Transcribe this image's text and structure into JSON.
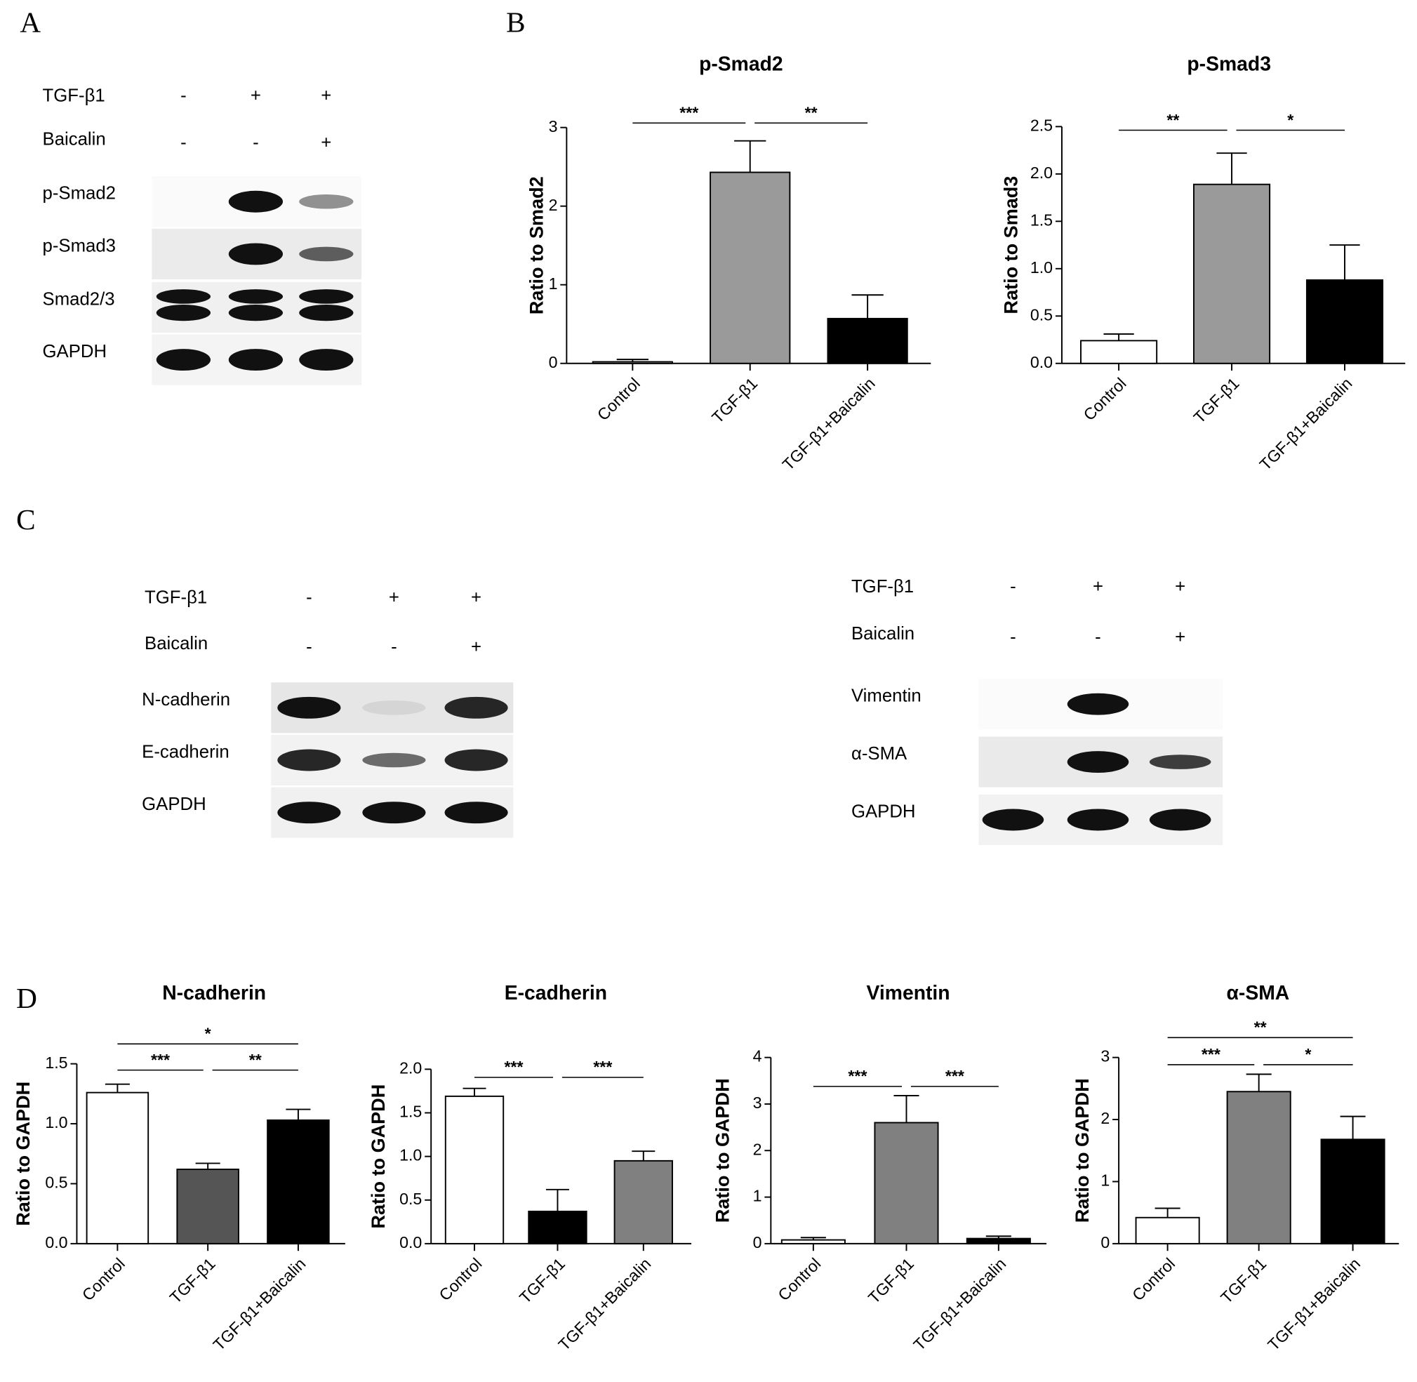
{
  "panel_labels": [
    "A",
    "B",
    "C",
    "D"
  ],
  "blots": [
    {
      "treatments": [
        {
          "name": "TGF-β1",
          "signs": [
            "-",
            "+",
            "+"
          ]
        },
        {
          "name": "Baicalin",
          "signs": [
            "-",
            "-",
            "+"
          ]
        }
      ],
      "proteins": [
        "p-Smad2",
        "p-Smad3",
        "Smad2/3",
        "GAPDH"
      ]
    },
    {
      "treatments": [
        {
          "name": "TGF-β1",
          "signs": [
            "-",
            "+",
            "+"
          ]
        },
        {
          "name": "Baicalin",
          "signs": [
            "-",
            "-",
            "+"
          ]
        }
      ],
      "proteins": [
        "N-cadherin",
        "E-cadherin",
        "GAPDH"
      ]
    },
    {
      "treatments": [
        {
          "name": "TGF-β1",
          "signs": [
            "-",
            "+",
            "+"
          ]
        },
        {
          "name": "Baicalin",
          "signs": [
            "-",
            "-",
            "+"
          ]
        }
      ],
      "proteins": [
        "Vimentin",
        "α-SMA",
        "GAPDH"
      ]
    }
  ],
  "chart_data": [
    {
      "type": "bar",
      "title": "p-Smad2",
      "y_label": "Ratio to Smad2",
      "categories": [
        "Control",
        "TGF-β1",
        "TGF-β1+Baicalin"
      ],
      "values": [
        0.02,
        2.43,
        0.57
      ],
      "errors": [
        0.03,
        0.4,
        0.3
      ],
      "colors": [
        "#ffffff",
        "#9a9a9a",
        "#000000"
      ],
      "ylim": [
        0,
        3
      ],
      "yticks": [
        0,
        1,
        2,
        3
      ],
      "annotations": [
        {
          "text": "***",
          "groups": [
            "Control",
            "TGF-β1"
          ]
        },
        {
          "text": "**",
          "groups": [
            "TGF-β1",
            "TGF-β1+Baicalin"
          ]
        }
      ]
    },
    {
      "type": "bar",
      "title": "p-Smad3",
      "y_label": "Ratio to Smad3",
      "categories": [
        "Control",
        "TGF-β1",
        "TGF-β1+Baicalin"
      ],
      "values": [
        0.24,
        1.89,
        0.88
      ],
      "errors": [
        0.07,
        0.33,
        0.37
      ],
      "colors": [
        "#ffffff",
        "#9a9a9a",
        "#000000"
      ],
      "ylim": [
        0,
        2.5
      ],
      "yticks": [
        {
          "value": 0,
          "label": "0.0"
        },
        0.5,
        {
          "value": 1,
          "label": "1.0"
        },
        1.5,
        {
          "value": 2,
          "label": "2.0"
        },
        2.5
      ],
      "annotations": [
        {
          "text": "**",
          "groups": [
            "Control",
            "TGF-β1"
          ]
        },
        {
          "text": "*",
          "groups": [
            "TGF-β1",
            "TGF-β1+Baicalin"
          ]
        }
      ]
    },
    {
      "type": "bar",
      "title": "N-cadherin",
      "y_label": "Ratio to GAPDH",
      "categories": [
        "Control",
        "TGF-β1",
        "TGF-β1+Baicalin"
      ],
      "values": [
        1.26,
        0.62,
        1.03
      ],
      "errors": [
        0.07,
        0.05,
        0.09
      ],
      "colors": [
        "#ffffff",
        "#555555",
        "#000000"
      ],
      "ylim": [
        0,
        1.5
      ],
      "yticks": [
        {
          "value": 0,
          "label": "0.0"
        },
        0.5,
        {
          "value": 1,
          "label": "1.0"
        },
        1.5
      ],
      "annotations": [
        {
          "text": "***",
          "groups": [
            "Control",
            "TGF-β1"
          ]
        },
        {
          "text": "**",
          "groups": [
            "TGF-β1",
            "TGF-β1+Baicalin"
          ]
        },
        {
          "text": "*",
          "groups": [
            "Control",
            "TGF-β1+Baicalin"
          ]
        }
      ]
    },
    {
      "type": "bar",
      "title": "E-cadherin",
      "y_label": "Ratio to GAPDH",
      "categories": [
        "Control",
        "TGF-β1",
        "TGF-β1+Baicalin"
      ],
      "values": [
        1.69,
        0.37,
        0.95
      ],
      "errors": [
        0.09,
        0.25,
        0.11
      ],
      "colors": [
        "#ffffff",
        "#000000",
        "#808080"
      ],
      "ylim": [
        0,
        2
      ],
      "yticks": [
        {
          "value": 0,
          "label": "0.0"
        },
        0.5,
        {
          "value": 1,
          "label": "1.0"
        },
        1.5,
        {
          "value": 2,
          "label": "2.0"
        }
      ],
      "annotations": [
        {
          "text": "***",
          "groups": [
            "Control",
            "TGF-β1"
          ]
        },
        {
          "text": "***",
          "groups": [
            "TGF-β1",
            "TGF-β1+Baicalin"
          ]
        }
      ]
    },
    {
      "type": "bar",
      "title": "Vimentin",
      "y_label": "Ratio to GAPDH",
      "categories": [
        "Control",
        "TGF-β1",
        "TGF-β1+Baicalin"
      ],
      "values": [
        0.08,
        2.6,
        0.11
      ],
      "errors": [
        0.05,
        0.58,
        0.05
      ],
      "colors": [
        "#ffffff",
        "#808080",
        "#000000"
      ],
      "ylim": [
        0,
        4
      ],
      "yticks": [
        0,
        1,
        2,
        3,
        4
      ],
      "annotations": [
        {
          "text": "***",
          "groups": [
            "Control",
            "TGF-β1"
          ]
        },
        {
          "text": "***",
          "groups": [
            "TGF-β1",
            "TGF-β1+Baicalin"
          ]
        }
      ]
    },
    {
      "type": "bar",
      "title": "α-SMA",
      "y_label": "Ratio to GAPDH",
      "categories": [
        "Control",
        "TGF-β1",
        "TGF-β1+Baicalin"
      ],
      "values": [
        0.42,
        2.45,
        1.68
      ],
      "errors": [
        0.15,
        0.28,
        0.37
      ],
      "colors": [
        "#ffffff",
        "#808080",
        "#000000"
      ],
      "ylim": [
        0,
        3
      ],
      "yticks": [
        0,
        1,
        2,
        3
      ],
      "annotations": [
        {
          "text": "***",
          "groups": [
            "Control",
            "TGF-β1"
          ]
        },
        {
          "text": "*",
          "groups": [
            "TGF-β1",
            "TGF-β1+Baicalin"
          ]
        },
        {
          "text": "**",
          "groups": [
            "Control",
            "TGF-β1+Baicalin"
          ]
        }
      ]
    }
  ]
}
